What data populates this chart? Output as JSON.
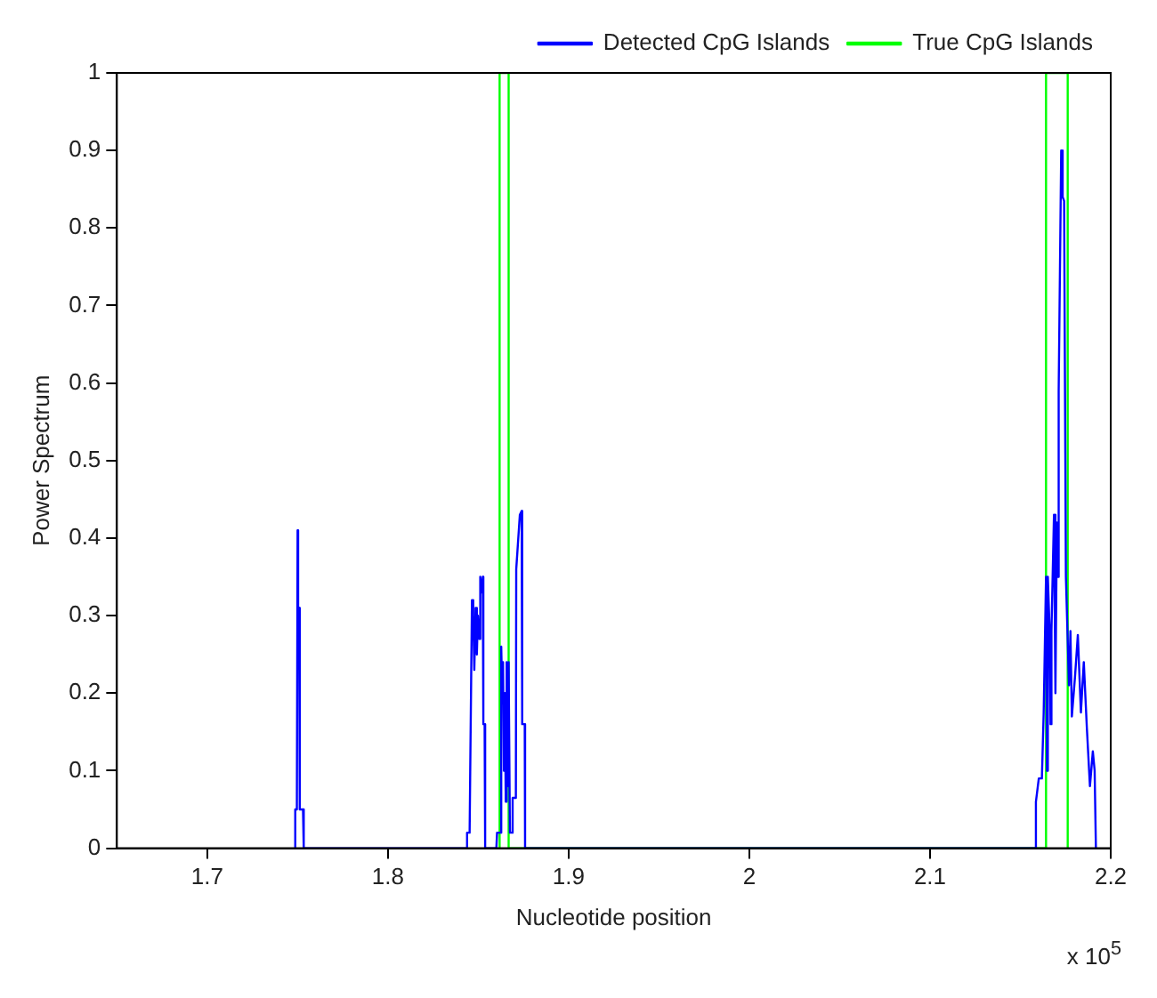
{
  "chart_data": {
    "type": "line",
    "xlabel": "Nucleotide position",
    "ylabel": "Power Spectrum",
    "annotations": [
      "x 10$^{5}$"
    ],
    "xlim": [
      1.65,
      2.2
    ],
    "xticks": [
      1.7,
      1.8,
      1.9,
      {
        "value": 2,
        "label": "2"
      },
      2.1,
      2.2
    ],
    "ylim": [
      0,
      1
    ],
    "yticks": [
      0,
      0.1,
      0.2,
      0.3,
      0.4,
      0.5,
      0.6,
      0.7,
      0.8,
      0.9,
      1
    ],
    "grid": false,
    "legend": "top right",
    "marker": "none",
    "line_style": "solid",
    "series": [
      {
        "name": "Detected CpG Islands",
        "color": "#0000ff",
        "x": [
          1.7485,
          1.7487,
          1.7496,
          1.75,
          1.7503,
          1.7509,
          1.7512,
          1.753,
          1.7534,
          1.8435,
          1.8438,
          1.8452,
          1.8455,
          1.8462,
          1.8465,
          1.8472,
          1.8478,
          1.8485,
          1.8492,
          1.8498,
          1.8505,
          1.8511,
          1.8518,
          1.8525,
          1.8528,
          1.8535,
          1.8538,
          1.86,
          1.8604,
          1.8625,
          1.8627,
          1.8632,
          1.8637,
          1.8642,
          1.8647,
          1.8652,
          1.8657,
          1.8662,
          1.8668,
          1.8675,
          1.8687,
          1.869,
          1.8708,
          1.871,
          1.873,
          1.874,
          1.8743,
          1.8757,
          1.8759,
          2.1584,
          2.1586,
          2.1602,
          2.1619,
          2.1629,
          2.1642,
          2.1647,
          2.1652,
          2.1662,
          2.1667,
          2.1672,
          2.1686,
          2.1694,
          2.1702,
          2.1707,
          2.1712,
          2.1726,
          2.1734,
          2.1742,
          2.1752,
          2.1769,
          2.1777,
          2.1785,
          2.1802,
          2.1818,
          2.1835,
          2.1851,
          2.1868,
          2.1885,
          2.1901,
          2.1911,
          2.1918
        ],
        "values": [
          0,
          0.05,
          0.05,
          0.41,
          0.31,
          0.31,
          0.05,
          0.05,
          0,
          0,
          0.02,
          0.02,
          0.09,
          0.09,
          0.32,
          0.3,
          0.23,
          0.31,
          0.25,
          0.3,
          0.27,
          0.35,
          0.33,
          0.35,
          0.16,
          0.16,
          0,
          0,
          0.02,
          0.02,
          0.26,
          0.2,
          0.24,
          0.1,
          0.2,
          0.06,
          0.24,
          0.08,
          0.24,
          0.02,
          0.02,
          0.065,
          0.065,
          0.36,
          0.43,
          0.435,
          0.16,
          0.16,
          0,
          0,
          0.06,
          0.09,
          0.09,
          0.175,
          0.35,
          0.1,
          0.35,
          0.28,
          0.16,
          0.28,
          0.43,
          0.2,
          0.42,
          0.35,
          0.59,
          0.9,
          0.84,
          0.835,
          0.35,
          0.21,
          0.28,
          0.17,
          0.22,
          0.275,
          0.175,
          0.24,
          0.155,
          0.08,
          0.125,
          0.1,
          0
        ]
      },
      {
        "name": "True CpG Islands",
        "color": "#00ff00",
        "x": [
          1.8618,
          1.8618,
          1.8668,
          1.8668,
          2.1642,
          2.1642,
          2.1762,
          2.1762
        ],
        "values": [
          0,
          1,
          1,
          0,
          0,
          1,
          1,
          0
        ]
      }
    ]
  }
}
